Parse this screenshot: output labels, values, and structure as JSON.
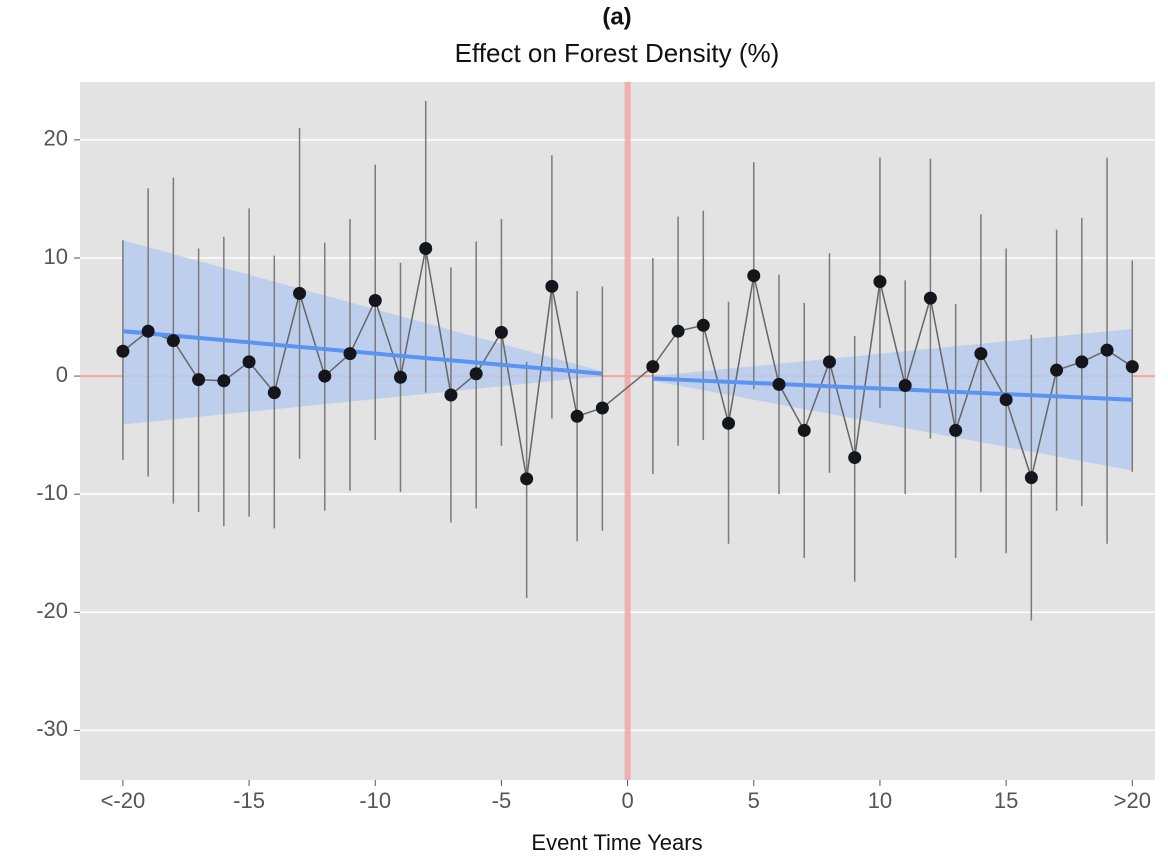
{
  "chart_data": {
    "type": "errorbar",
    "panel_label": "(a)",
    "title": "Effect on Forest Density (%)",
    "x_label": "Event Time Years",
    "xlim": [
      -21.7,
      20.9
    ],
    "ylim": [
      -34.2,
      24.9
    ],
    "xticks": [
      {
        "value": -20,
        "label": "<-20"
      },
      -15,
      -10,
      -5,
      0,
      5,
      10,
      15,
      {
        "value": 20,
        "label": ">20"
      }
    ],
    "yticks": [
      -30,
      -20,
      -10,
      0,
      10,
      20
    ],
    "grid": true,
    "background": "#e3e3e3",
    "hline": 0,
    "vline": 0,
    "ref_color": "#f2a3a3",
    "series": [
      {
        "color": "#15161c",
        "line_color": "#666666",
        "bar_color": "#7a7a7a",
        "x": [
          -20,
          -19,
          -18,
          -17,
          -16,
          -15,
          -14,
          -13,
          -12,
          -11,
          -10,
          -9,
          -8,
          -7,
          -6,
          -5,
          -4,
          -3,
          -2,
          -1,
          1,
          2,
          3,
          4,
          5,
          6,
          7,
          8,
          9,
          10,
          11,
          12,
          13,
          14,
          15,
          16,
          17,
          18,
          19,
          20
        ],
        "values": [
          2.1,
          3.8,
          3.0,
          -0.3,
          -0.4,
          1.2,
          -1.4,
          7.0,
          0.0,
          1.9,
          6.4,
          -0.1,
          10.8,
          -1.6,
          0.2,
          3.7,
          -8.7,
          7.6,
          -3.4,
          -2.7,
          0.8,
          3.8,
          4.3,
          -4.0,
          8.5,
          -0.7,
          -4.6,
          1.2,
          -6.9,
          8.0,
          -0.8,
          6.6,
          -4.6,
          1.9,
          -2.0,
          -8.6,
          0.5,
          1.2,
          2.2,
          0.8
        ],
        "lower": [
          -7.1,
          -8.5,
          -10.8,
          -11.5,
          -12.7,
          -11.9,
          -12.9,
          -7.0,
          -11.4,
          -9.7,
          -5.4,
          -9.8,
          -1.4,
          -12.4,
          -11.2,
          -5.9,
          -18.8,
          -3.6,
          -14.0,
          -13.1,
          -8.3,
          -5.9,
          -5.4,
          -14.2,
          -1.1,
          -10.0,
          -15.4,
          -8.2,
          -17.4,
          -2.7,
          -10.0,
          -5.3,
          -15.4,
          -9.8,
          -15.0,
          -20.7,
          -11.4,
          -11.0,
          -14.2,
          -8.1
        ],
        "upper": [
          11.5,
          15.9,
          16.8,
          10.8,
          11.8,
          14.2,
          10.2,
          21.0,
          11.3,
          13.3,
          17.9,
          9.6,
          23.3,
          9.2,
          11.4,
          13.3,
          1.2,
          18.7,
          7.2,
          7.6,
          10.0,
          13.5,
          14.0,
          6.3,
          18.1,
          8.6,
          6.2,
          10.4,
          3.4,
          18.5,
          8.1,
          18.4,
          6.1,
          13.7,
          10.8,
          3.5,
          12.4,
          13.4,
          18.5,
          9.8
        ]
      }
    ],
    "trends": [
      {
        "color": "#5b93f0",
        "band_color": "#b7cbef",
        "x": [
          -20,
          -1
        ],
        "values": [
          3.8,
          0.2
        ],
        "lower": [
          -4.1,
          0.0
        ],
        "upper": [
          11.5,
          0.4
        ]
      },
      {
        "color": "#5b93f0",
        "band_color": "#b7cbef",
        "x": [
          1,
          20
        ],
        "values": [
          -0.2,
          -2.0
        ],
        "lower": [
          -0.4,
          -8.0
        ],
        "upper": [
          0.0,
          4.0
        ]
      }
    ]
  }
}
